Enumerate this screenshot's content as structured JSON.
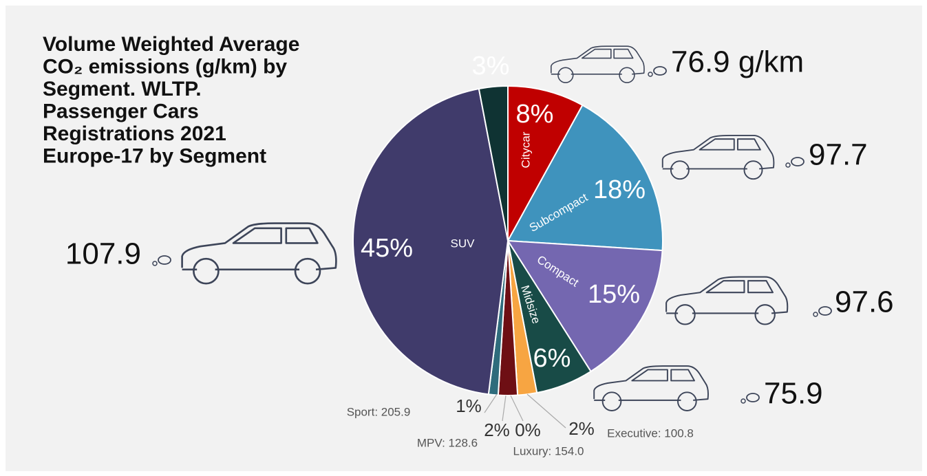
{
  "chart_data": {
    "type": "pie",
    "title": [
      "Volume Weighted Average",
      "CO₂ emissions (g/km) by",
      "Segment. WLTP.",
      "Passenger Cars",
      "Registrations 2021",
      "Europe-17 by Segment"
    ],
    "categories": [
      "Citycar",
      "Subcompact",
      "Compact",
      "Midsize",
      "Executive: 100.8",
      "Luxury: 154.0",
      "MPV: 128.6",
      "Sport: 205.9",
      "SUV",
      null
    ],
    "values": [
      8,
      18,
      15,
      6,
      2,
      0,
      2,
      1,
      45,
      3
    ],
    "value_labels": [
      "8%",
      "18%",
      "15%",
      "6%",
      "2%",
      "0%",
      "2%",
      "1%",
      "45%",
      "3%"
    ],
    "emission_labels": [
      "76.9 g/km",
      "97.7",
      "97.6",
      "75.9",
      null,
      null,
      null,
      null,
      "107.9",
      null
    ],
    "colors": [
      "#c00000",
      "#3f93bd",
      "#7467b0",
      "#184b47",
      "#f7a542",
      "#a8a8a8",
      "#6e0f14",
      "#2f6c7c",
      "#403b6b",
      "#0f3333"
    ]
  }
}
